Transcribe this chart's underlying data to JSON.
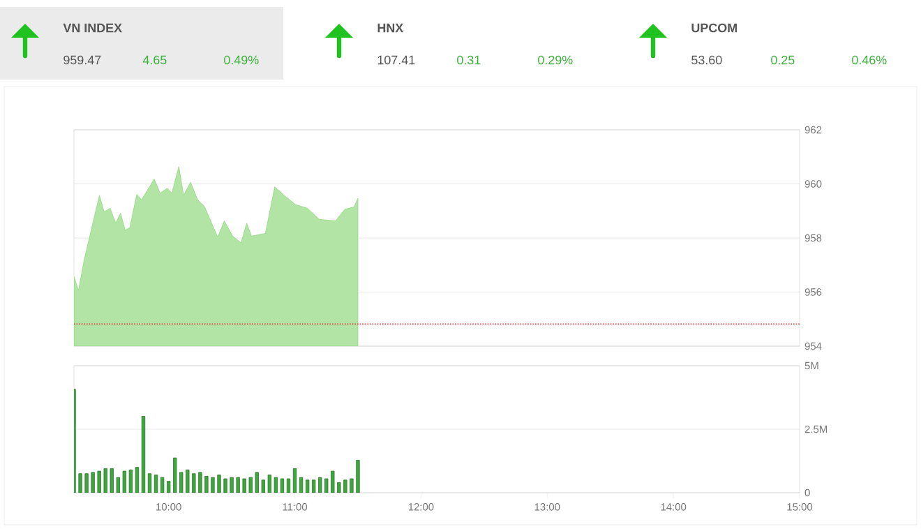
{
  "chart_data": [
    {
      "type": "other",
      "categories": [
        "VN INDEX",
        "HNX",
        "UPCOM"
      ],
      "annotations": [
        "959.47",
        "4.65",
        "0.49%",
        "107.41",
        "0.31",
        "0.29%",
        "53.60",
        "0.25",
        "0.46%"
      ]
    },
    {
      "type": "area",
      "x": [
        9.25,
        9.286,
        9.33,
        9.378,
        9.452,
        9.489,
        9.537,
        9.581,
        9.619,
        9.656,
        9.692,
        9.748,
        9.786,
        9.886,
        9.933,
        9.989,
        10.026,
        10.081,
        10.119,
        10.174,
        10.23,
        10.286,
        10.341,
        10.389,
        10.441,
        10.508,
        10.574,
        10.619,
        10.656,
        10.767,
        10.841,
        10.915,
        11.007,
        11.1,
        11.193,
        11.322,
        11.396,
        11.47,
        11.5
      ],
      "values": [
        956.57,
        956.06,
        957.17,
        958.12,
        959.58,
        958.97,
        959.1,
        958.55,
        958.92,
        958.29,
        958.38,
        959.61,
        959.41,
        960.18,
        959.66,
        959.84,
        959.66,
        960.64,
        959.58,
        960.06,
        959.41,
        959.15,
        958.55,
        958.03,
        958.63,
        958.07,
        957.82,
        958.55,
        958.07,
        958.17,
        959.89,
        959.58,
        959.23,
        959.1,
        958.69,
        958.63,
        959.06,
        959.15,
        959.47
      ],
      "color": "#8fd97f",
      "xlim": [
        9.25,
        15
      ],
      "ylim": [
        954,
        962
      ],
      "yticks": [
        954,
        956,
        958,
        960,
        962
      ],
      "grid": "y",
      "tick_labels": "y",
      "ref_lines": [
        {
          "axis": "y",
          "value": 954.82,
          "color": "#e03030",
          "line_style": "dotted"
        }
      ]
    },
    {
      "type": "bar",
      "x": [
        9.25,
        9.3,
        9.35,
        9.4,
        9.45,
        9.5,
        9.55,
        9.6,
        9.65,
        9.7,
        9.75,
        9.8,
        9.85,
        9.9,
        9.95,
        10.0,
        10.05,
        10.1,
        10.15,
        10.2,
        10.25,
        10.3,
        10.35,
        10.4,
        10.45,
        10.5,
        10.55,
        10.6,
        10.65,
        10.7,
        10.75,
        10.8,
        10.85,
        10.9,
        10.95,
        11.0,
        11.05,
        11.1,
        11.15,
        11.2,
        11.25,
        11.3,
        11.35,
        11.4,
        11.45,
        11.5
      ],
      "values": [
        4070000,
        750000,
        750000,
        800000,
        850000,
        950000,
        950000,
        600000,
        850000,
        900000,
        1000000,
        3010000,
        750000,
        700000,
        600000,
        450000,
        1370000,
        800000,
        900000,
        750000,
        800000,
        650000,
        600000,
        700000,
        550000,
        600000,
        600000,
        550000,
        600000,
        800000,
        500000,
        700000,
        600000,
        550000,
        550000,
        950000,
        600000,
        500000,
        500000,
        600000,
        550000,
        850000,
        400000,
        500000,
        550000,
        1280000
      ],
      "color": "#3da63d",
      "xlim": [
        9.25,
        15
      ],
      "xticks": [
        {
          "value": 10,
          "label": "10:00"
        },
        {
          "value": 11,
          "label": "11:00"
        },
        {
          "value": 12,
          "label": "12:00"
        },
        {
          "value": 13,
          "label": "13:00"
        },
        {
          "value": 14,
          "label": "14:00"
        },
        {
          "value": 15,
          "label": "15:00"
        }
      ],
      "ylim": [
        0,
        5000000
      ],
      "yticks": [
        0,
        {
          "value": 2500000,
          "label": "2.5M"
        },
        {
          "value": 5000000,
          "label": "5M"
        }
      ],
      "grid": "y"
    }
  ]
}
